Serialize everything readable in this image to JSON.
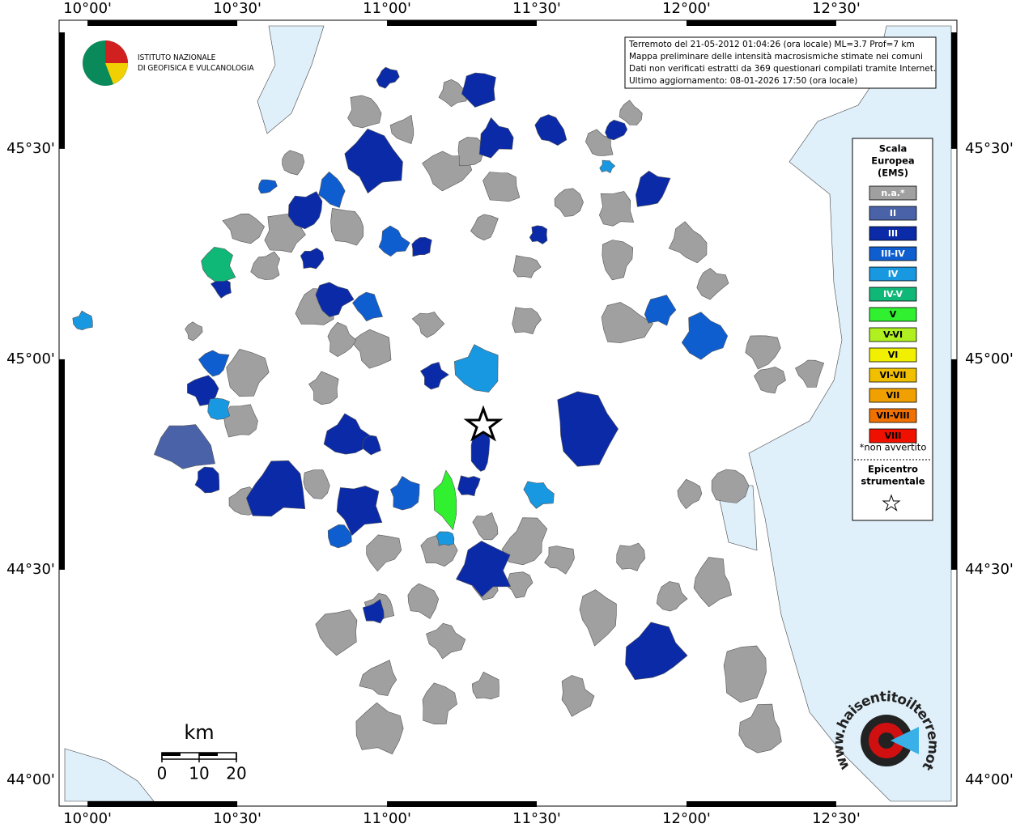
{
  "map_data": {
    "lon_ticks": [
      {
        "value": 10,
        "label": "10°00'"
      },
      {
        "value": 10.5,
        "label": "10°30'"
      },
      {
        "value": 11,
        "label": "11°00'"
      },
      {
        "value": 11.5,
        "label": "11°30'"
      },
      {
        "value": 12,
        "label": "12°00'"
      },
      {
        "value": 12.5,
        "label": "12°30'"
      }
    ],
    "lat_ticks": [
      {
        "value": 45.5,
        "label": "45°30'"
      },
      {
        "value": 45,
        "label": "45°00'"
      },
      {
        "value": 44.5,
        "label": "44°30'"
      },
      {
        "value": 44,
        "label": "44°00'"
      }
    ],
    "xlim": [
      9.924,
      12.884
    ],
    "ylim": [
      43.95,
      45.792
    ],
    "info_box": [
      "Terremoto del 21-05-2012 01:04:26 (ora locale) ML=3.7 Prof=7 km",
      "Mappa preliminare delle intensità macrosismiche stimate nei comuni",
      "Dati non verificati estratti da 369 questionari compilati tramite Internet.",
      "Ultimo aggiornamento: 08-01-2026 17:50 (ora locale)"
    ],
    "logo": [
      "ISTITUTO NAZIONALE",
      "DI GEOFISICA E VULCANOLOGIA"
    ],
    "legend": {
      "title": [
        "Scala",
        "Europea",
        "(EMS)"
      ],
      "items": [
        {
          "label": "n.a.*",
          "color": "#a0a0a0"
        },
        {
          "label": "II",
          "color": "#4a62a8"
        },
        {
          "label": "III",
          "color": "#0a2aa8"
        },
        {
          "label": "III-IV",
          "color": "#0e5ed0"
        },
        {
          "label": "IV",
          "color": "#1898e0"
        },
        {
          "label": "IV-V",
          "color": "#10b878"
        },
        {
          "label": "V",
          "color": "#30f030"
        },
        {
          "label": "V-VI",
          "color": "#b0f020"
        },
        {
          "label": "VI",
          "color": "#f0f000"
        },
        {
          "label": "VI-VII",
          "color": "#f0c000"
        },
        {
          "label": "VII",
          "color": "#f0a000"
        },
        {
          "label": "VII-VIII",
          "color": "#f07000"
        },
        {
          "label": "VIII",
          "color": "#f01000"
        }
      ],
      "note": "*non avvertito",
      "epicenter": [
        "Epicentro",
        "strumentale"
      ]
    },
    "scale_bar": {
      "unit": "km",
      "ticks": [
        0,
        10,
        20
      ]
    },
    "site_logo": "www.haisentitoilterremoto.it"
  }
}
